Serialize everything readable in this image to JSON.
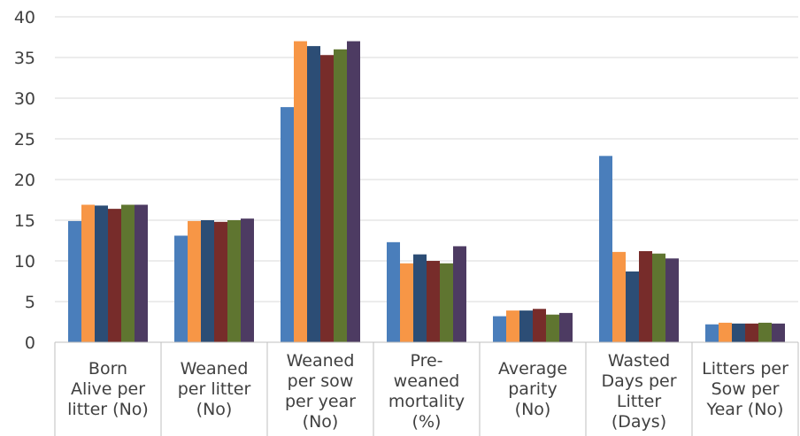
{
  "chart_data": {
    "type": "bar",
    "title": "",
    "xlabel": "",
    "ylabel": "",
    "ylim": [
      0,
      40
    ],
    "yticks": [
      0,
      5,
      10,
      15,
      20,
      25,
      30,
      35,
      40
    ],
    "grid": true,
    "legend": "none",
    "categories": [
      [
        "Born",
        "Alive per",
        "litter (No)"
      ],
      [
        "Weaned",
        "per litter",
        "(No)"
      ],
      [
        "Weaned",
        "per sow",
        "per year",
        "(No)"
      ],
      [
        "Pre-",
        "weaned",
        "mortality",
        "(%)"
      ],
      [
        "Average",
        "parity",
        "(No)"
      ],
      [
        "Wasted",
        "Days per",
        "Litter",
        "(Days)"
      ],
      [
        "Litters per",
        "Sow per",
        "Year (No)"
      ]
    ],
    "series": [
      {
        "color": "#4a7ebb",
        "values": [
          14.9,
          13.1,
          28.9,
          12.3,
          3.2,
          22.9,
          2.2
        ]
      },
      {
        "color": "#f79646",
        "values": [
          16.9,
          14.9,
          37.0,
          9.7,
          3.9,
          11.1,
          2.4
        ]
      },
      {
        "color": "#2c4d75",
        "values": [
          16.8,
          15.0,
          36.4,
          10.8,
          3.9,
          8.7,
          2.3
        ]
      },
      {
        "color": "#772c2a",
        "values": [
          16.4,
          14.8,
          35.3,
          10.0,
          4.1,
          11.2,
          2.3
        ]
      },
      {
        "color": "#5f7530",
        "values": [
          16.9,
          15.0,
          36.0,
          9.7,
          3.4,
          10.9,
          2.4
        ]
      },
      {
        "color": "#4d3b62",
        "values": [
          16.9,
          15.2,
          37.0,
          11.8,
          3.6,
          10.3,
          2.3
        ]
      }
    ]
  }
}
